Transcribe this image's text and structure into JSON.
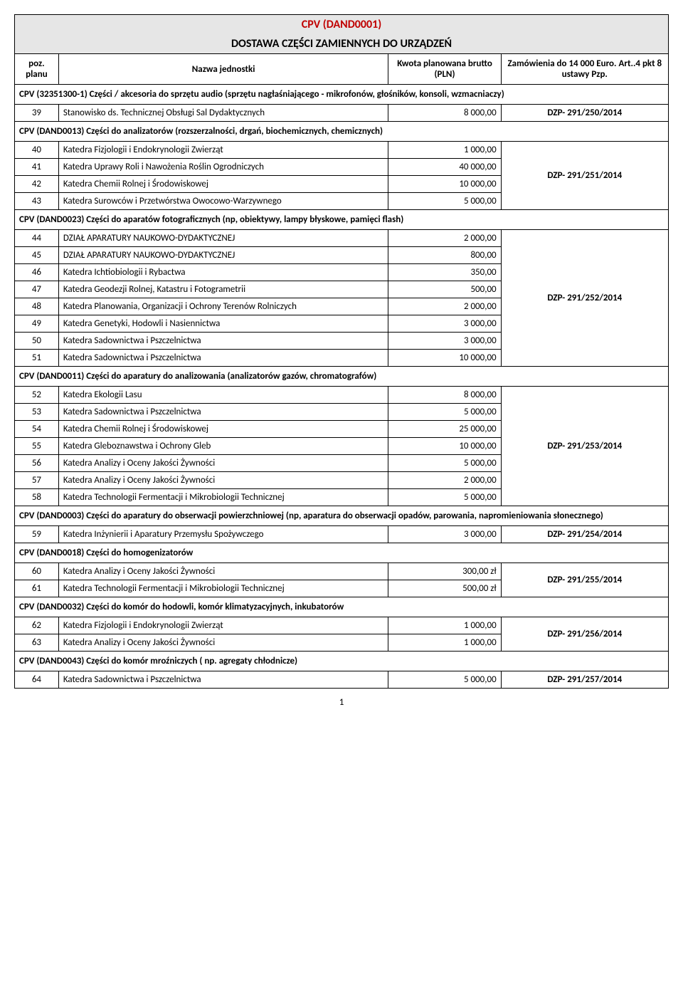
{
  "title": "CPV (DAND0001)",
  "subtitle": "DOSTAWA CZĘŚCI ZAMIENNYCH DO URZĄDZEŃ",
  "headers": {
    "poz": "poz. planu",
    "name": "Nazwa jednostki",
    "amount": "Kwota planowana brutto (PLN)",
    "order": "Zamówienia do 14 000 Euro. Art..4 pkt  8 ustawy Pzp."
  },
  "sections": [
    {
      "title": "CPV (32351300-1) Części / akcesoria do sprzętu audio (sprzętu nagłaśniającego - mikrofonów, głośników, konsoli, wzmacniaczy)",
      "rows": [
        {
          "num": "39",
          "name": "Stanowisko ds. Technicznej Obsługi Sal Dydaktycznych",
          "amount": "8 000,00",
          "order": "DZP- 291/250/2014"
        }
      ]
    },
    {
      "title": "CPV (DAND0013) Części do analizatorów (rozszerzalności, drgań, biochemicznych, chemicznych)",
      "rows": [
        {
          "num": "40",
          "name": "Katedra Fizjologii i Endokrynologii Zwierząt",
          "amount": "1 000,00"
        },
        {
          "num": "41",
          "name": "Katedra Uprawy Roli i Nawożenia Roślin Ogrodniczych",
          "amount": "40 000,00"
        },
        {
          "num": "42",
          "name": "Katedra Chemii Rolnej i Środowiskowej",
          "amount": "10 000,00"
        },
        {
          "num": "43",
          "name": "Katedra Surowców i Przetwórstwa Owocowo-Warzywnego",
          "amount": "5 000,00"
        }
      ],
      "order": "DZP- 291/251/2014"
    },
    {
      "title": "CPV (DAND0023) Części do aparatów fotograficznych (np, obiektywy, lampy błyskowe, pamięci flash)",
      "rows": [
        {
          "num": "44",
          "name": "DZIAŁ APARATURY NAUKOWO-DYDAKTYCZNEJ",
          "amount": "2 000,00"
        },
        {
          "num": "45",
          "name": "DZIAŁ APARATURY NAUKOWO-DYDAKTYCZNEJ",
          "amount": "800,00"
        },
        {
          "num": "46",
          "name": "Katedra Ichtiobiologii i Rybactwa",
          "amount": "350,00"
        },
        {
          "num": "47",
          "name": "Katedra Geodezji Rolnej, Katastru i Fotogrametrii",
          "amount": "500,00"
        },
        {
          "num": "48",
          "name": "Katedra Planowania, Organizacji i Ochrony Terenów Rolniczych",
          "amount": "2 000,00"
        },
        {
          "num": "49",
          "name": "Katedra Genetyki, Hodowli i Nasiennictwa",
          "amount": "3 000,00"
        },
        {
          "num": "50",
          "name": "Katedra Sadownictwa i Pszczelnictwa",
          "amount": "3 000,00"
        },
        {
          "num": "51",
          "name": "Katedra Sadownictwa i Pszczelnictwa",
          "amount": "10 000,00"
        }
      ],
      "order": "DZP- 291/252/2014"
    },
    {
      "title": "CPV (DAND0011) Części do aparatury do analizowania (analizatorów gazów, chromatografów)",
      "rows": [
        {
          "num": "52",
          "name": "Katedra Ekologii Lasu",
          "amount": "8 000,00"
        },
        {
          "num": "53",
          "name": "Katedra Sadownictwa i Pszczelnictwa",
          "amount": "5 000,00"
        },
        {
          "num": "54",
          "name": "Katedra Chemii Rolnej i Środowiskowej",
          "amount": "25 000,00"
        },
        {
          "num": "55",
          "name": "Katedra Gleboznawstwa i Ochrony Gleb",
          "amount": "10 000,00"
        },
        {
          "num": "56",
          "name": "Katedra Analizy i Oceny Jakości Żywności",
          "amount": "5 000,00"
        },
        {
          "num": "57",
          "name": "Katedra Analizy i Oceny Jakości Żywności",
          "amount": "2 000,00"
        },
        {
          "num": "58",
          "name": "Katedra Technologii Fermentacji i Mikrobiologii Technicznej",
          "amount": "5 000,00"
        }
      ],
      "order": "DZP- 291/253/2014"
    },
    {
      "title": "CPV (DAND0003) Części do aparatury do obserwacji powierzchniowej (np, aparatura do obserwacji opadów, parowania, napromieniowania słonecznego)",
      "rows": [
        {
          "num": "59",
          "name": "Katedra Inżynierii i Aparatury Przemysłu Spożywczego",
          "amount": "3 000,00",
          "order": "DZP- 291/254/2014"
        }
      ]
    },
    {
      "title": "CPV (DAND0018) Części do homogenizatorów",
      "rows": [
        {
          "num": "60",
          "name": "Katedra Analizy i Oceny Jakości Żywności",
          "amount": "300,00 zł"
        },
        {
          "num": "61",
          "name": "Katedra Technologii Fermentacji i Mikrobiologii Technicznej",
          "amount": "500,00 zł"
        }
      ],
      "order": "DZP- 291/255/2014"
    },
    {
      "title": "CPV (DAND0032) Części do komór do hodowli, komór klimatyzacyjnych, inkubatorów",
      "rows": [
        {
          "num": "62",
          "name": "Katedra Fizjologii i Endokrynologii Zwierząt",
          "amount": "1 000,00"
        },
        {
          "num": "63",
          "name": "Katedra Analizy i Oceny Jakości Żywności",
          "amount": "1 000,00"
        }
      ],
      "order": "DZP- 291/256/2014"
    },
    {
      "title": "CPV (DAND0043) Części do komór mroźniczych ( np. agregaty chłodnicze)",
      "rows": [
        {
          "num": "64",
          "name": "Katedra Sadownictwa i Pszczelnictwa",
          "amount": "5 000,00",
          "order": "DZP- 291/257/2014"
        }
      ]
    }
  ],
  "pageNumber": "1"
}
